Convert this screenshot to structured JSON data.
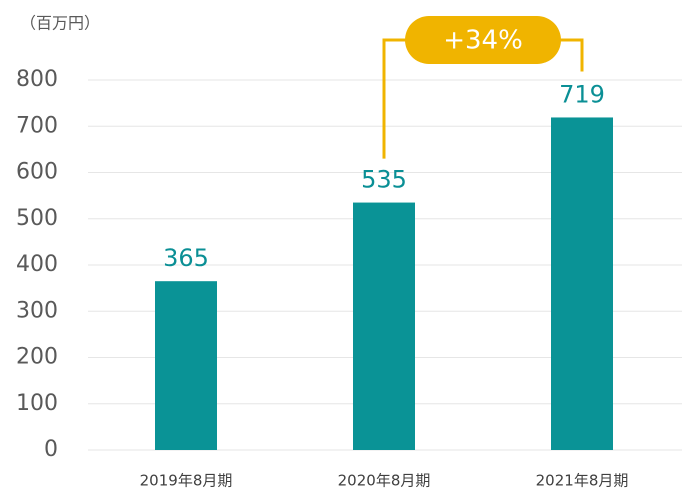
{
  "chart_data": {
    "type": "bar",
    "y_unit_label": "（百万円）",
    "categories": [
      "2019年8月期",
      "2020年8月期",
      "2021年8月期"
    ],
    "values": [
      365,
      535,
      719
    ],
    "color": "#0a9396",
    "ylim": [
      0,
      800
    ],
    "yticks": [
      0,
      100,
      200,
      300,
      400,
      500,
      600,
      700,
      800
    ],
    "grid": true,
    "annotation": "+34%",
    "annotation_color": "#f0b400"
  }
}
